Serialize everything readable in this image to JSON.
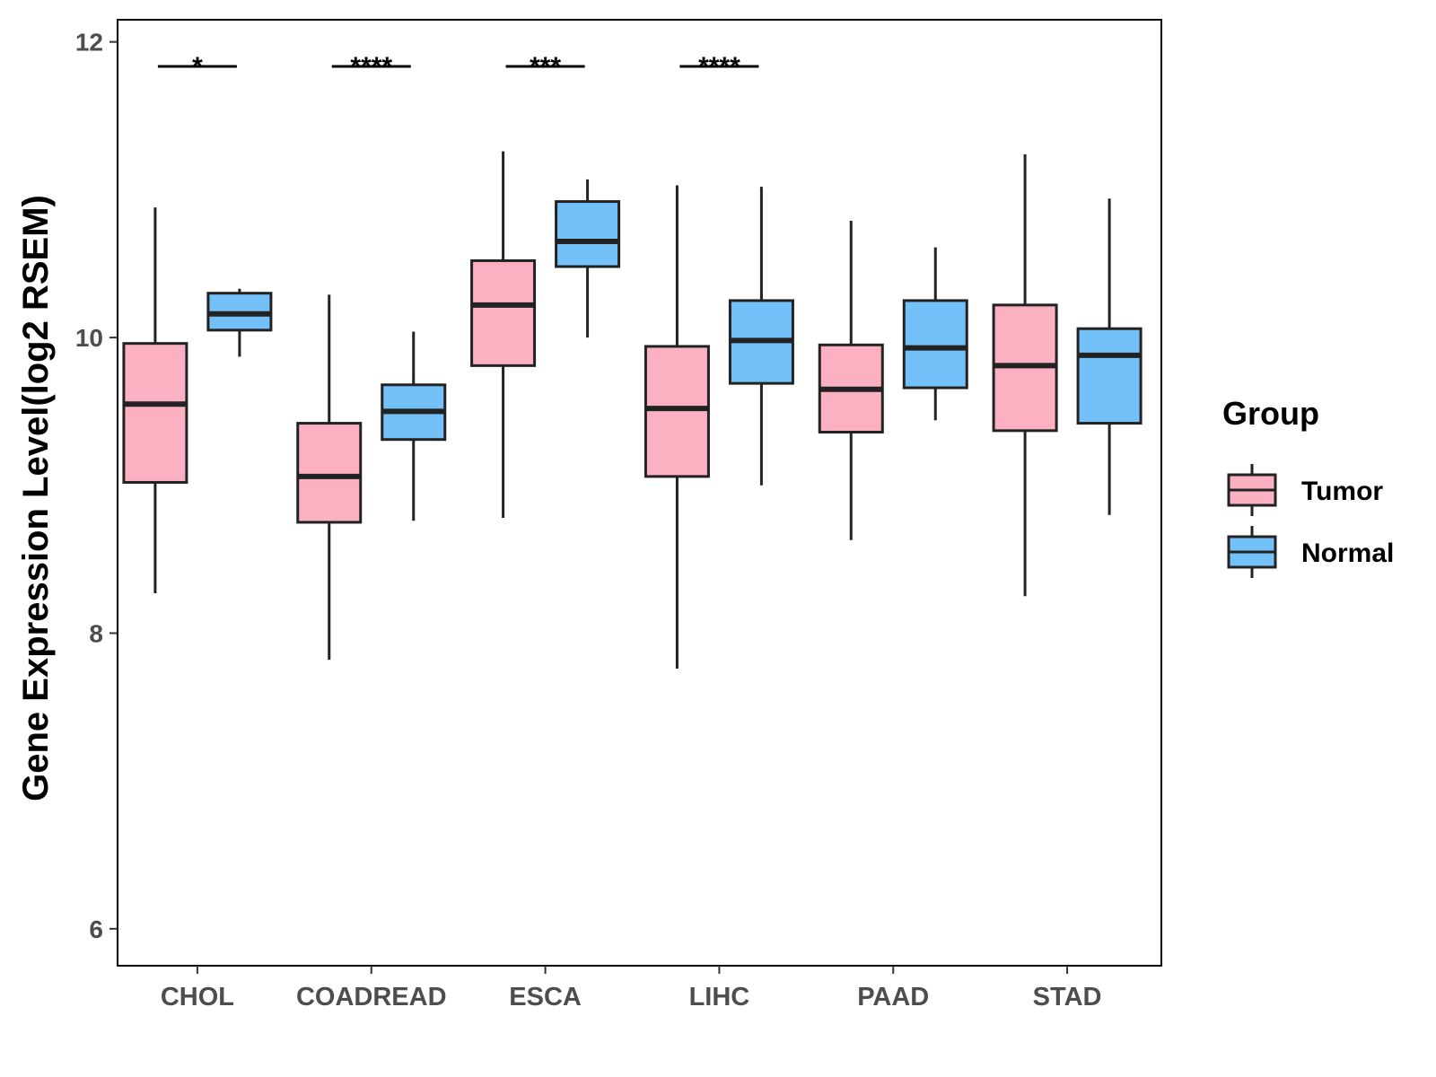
{
  "chart_data": {
    "type": "boxplot",
    "ylabel": "Gene Expression Level(log2 RSEM)",
    "ylim": [
      5.75,
      12.15
    ],
    "yticks": [
      6,
      8,
      10,
      12
    ],
    "categories": [
      "CHOL",
      "COADREAD",
      "ESCA",
      "LIHC",
      "PAAD",
      "STAD"
    ],
    "legend": {
      "title": "Group",
      "placement": "right"
    },
    "series": [
      {
        "name": "Tumor",
        "color": "#FBB1C2",
        "boxes": [
          {
            "min": 8.27,
            "q1": 9.02,
            "median": 9.55,
            "q3": 9.96,
            "max": 10.88
          },
          {
            "min": 7.82,
            "q1": 8.75,
            "median": 9.06,
            "q3": 9.42,
            "max": 10.29
          },
          {
            "min": 8.78,
            "q1": 9.81,
            "median": 10.22,
            "q3": 10.52,
            "max": 11.26
          },
          {
            "min": 7.76,
            "q1": 9.06,
            "median": 9.52,
            "q3": 9.94,
            "max": 11.03
          },
          {
            "min": 8.63,
            "q1": 9.36,
            "median": 9.65,
            "q3": 9.95,
            "max": 10.79
          },
          {
            "min": 8.25,
            "q1": 9.37,
            "median": 9.81,
            "q3": 10.22,
            "max": 11.24
          }
        ]
      },
      {
        "name": "Normal",
        "color": "#74C0F8",
        "boxes": [
          {
            "min": 9.87,
            "q1": 10.05,
            "median": 10.16,
            "q3": 10.3,
            "max": 10.33
          },
          {
            "min": 8.76,
            "q1": 9.31,
            "median": 9.5,
            "q3": 9.68,
            "max": 10.04
          },
          {
            "min": 10.0,
            "q1": 10.48,
            "median": 10.65,
            "q3": 10.92,
            "max": 11.07
          },
          {
            "min": 9.0,
            "q1": 9.69,
            "median": 9.98,
            "q3": 10.25,
            "max": 11.02
          },
          {
            "min": 9.44,
            "q1": 9.66,
            "median": 9.93,
            "q3": 10.25,
            "max": 10.61
          },
          {
            "min": 8.8,
            "q1": 9.42,
            "median": 9.88,
            "q3": 10.06,
            "max": 10.94
          }
        ]
      }
    ],
    "significance": [
      "*",
      "****",
      "***",
      "****",
      "",
      ""
    ]
  }
}
